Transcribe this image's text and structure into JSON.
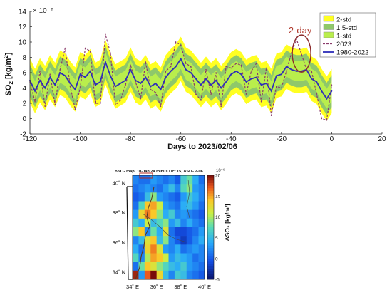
{
  "chart_data": [
    {
      "type": "line",
      "xlabel": "Days to 2023/02/06",
      "ylabel": "SO2 [kg/m2]",
      "y_exponent": "× 10⁻⁶",
      "xlim": [
        -120,
        20
      ],
      "ylim": [
        -2,
        14
      ],
      "x_ticks": [
        -120,
        -100,
        -80,
        -60,
        -40,
        -20,
        0,
        20
      ],
      "y_ticks": [
        -2,
        0,
        2,
        4,
        6,
        8,
        10,
        12,
        14
      ],
      "legend_position": "top-right",
      "grid": false,
      "x": [
        -120,
        -118,
        -116,
        -114,
        -112,
        -110,
        -108,
        -106,
        -104,
        -102,
        -100,
        -98,
        -96,
        -94,
        -92,
        -90,
        -88,
        -86,
        -84,
        -82,
        -80,
        -78,
        -76,
        -74,
        -72,
        -70,
        -68,
        -66,
        -64,
        -62,
        -60,
        -58,
        -56,
        -54,
        -52,
        -50,
        -48,
        -46,
        -44,
        -42,
        -40,
        -38,
        -36,
        -34,
        -32,
        -30,
        -28,
        -26,
        -24,
        -22,
        -20,
        -18,
        -16,
        -14,
        -12,
        -10,
        -8,
        -6,
        -4,
        -2,
        0
      ],
      "series": [
        {
          "name": "1980-2022",
          "role": "mean",
          "color": "#2e2eb8",
          "values": [
            5.0,
            3.6,
            5.0,
            4.0,
            5.4,
            4.4,
            6.0,
            5.6,
            4.6,
            3.8,
            5.8,
            5.4,
            6.2,
            4.4,
            4.8,
            7.4,
            5.6,
            4.2,
            4.6,
            5.0,
            6.4,
            5.0,
            4.6,
            5.4,
            4.2,
            4.6,
            3.8,
            5.4,
            6.2,
            6.8,
            7.8,
            6.4,
            6.0,
            5.2,
            4.4,
            5.2,
            4.4,
            5.0,
            4.0,
            4.8,
            5.8,
            6.2,
            5.8,
            4.8,
            5.2,
            5.4,
            4.4,
            4.6,
            3.6,
            5.6,
            5.8,
            6.8,
            6.4,
            6.2,
            6.2,
            6.4,
            5.2,
            4.8,
            3.6,
            2.6,
            3.6
          ]
        },
        {
          "name": "2023",
          "role": "observed",
          "color": "#8a3a6a",
          "values": [
            4.8,
            2.2,
            6.2,
            1.6,
            5.8,
            1.8,
            6.4,
            9.2,
            4.2,
            1.2,
            4.0,
            9.2,
            8.8,
            2.0,
            2.0,
            11.0,
            8.6,
            1.8,
            2.4,
            4.4,
            7.0,
            4.8,
            2.6,
            7.4,
            3.8,
            3.4,
            1.6,
            6.2,
            6.8,
            10.0,
            9.6,
            7.2,
            6.8,
            3.2,
            2.4,
            6.4,
            3.2,
            6.0,
            1.6,
            6.8,
            6.6,
            7.2,
            7.0,
            3.2,
            6.2,
            7.2,
            2.2,
            6.6,
            0.4,
            4.2,
            4.0,
            6.2,
            8.6,
            10.4,
            8.4,
            6.4,
            6.2,
            3.2,
            0.0,
            -0.2,
            4.4
          ]
        },
        {
          "name": "1-std",
          "role": "band",
          "half_width": 1.3,
          "color": "#b9ee4c"
        },
        {
          "name": "1.5-std",
          "role": "band",
          "half_width": 2.1,
          "color": "#8fc86a"
        },
        {
          "name": "2-std",
          "role": "band",
          "half_width": 2.9,
          "color": "#ffff22"
        }
      ],
      "annotation": {
        "text": "2-day",
        "x": -12,
        "y": 8.5,
        "color": "#b03a2e"
      }
    },
    {
      "type": "heatmap",
      "title": "ΔSO₂ map: 10-Jan 24 minus Oct 15, ΔSO₂ 2-06",
      "colorbar_label": "ΔSO₂ [kg/m²]",
      "colorbar_exponent": "10⁻⁶",
      "colorbar_range": [
        -5,
        20
      ],
      "colorbar_ticks": [
        -5,
        0,
        5,
        10,
        15,
        20
      ],
      "x_ticks": [
        "34˚ E",
        "36˚ E",
        "38˚ E",
        "40˚ E"
      ],
      "y_ticks": [
        "40˚ N",
        "38˚ N",
        "36˚ N",
        "34˚ N"
      ],
      "xlim": [
        34,
        40
      ],
      "ylim": [
        33.5,
        40.5
      ],
      "grid": [
        [
          2,
          1,
          1,
          3,
          2,
          1,
          2,
          0,
          6,
          8,
          4,
          1
        ],
        [
          1,
          2,
          3,
          2,
          1,
          3,
          5,
          2,
          7,
          9,
          3,
          2
        ],
        [
          0,
          1,
          5,
          9,
          3,
          2,
          1,
          0,
          3,
          6,
          4,
          2
        ],
        [
          1,
          7,
          14,
          15,
          11,
          3,
          2,
          1,
          4,
          5,
          3,
          1
        ],
        [
          3,
          13,
          16,
          14,
          9,
          4,
          6,
          2,
          3,
          2,
          1,
          0
        ],
        [
          6,
          4,
          11,
          5,
          7,
          9,
          3,
          5,
          2,
          4,
          2,
          1
        ],
        [
          9,
          14,
          2,
          8,
          4,
          12,
          1,
          -1,
          -1,
          0,
          1,
          3
        ],
        [
          2,
          5,
          12,
          14,
          5,
          9,
          2,
          0,
          -2,
          0,
          2,
          4
        ],
        [
          4,
          1,
          13,
          16,
          12,
          3,
          2,
          4,
          1,
          2,
          3,
          2
        ],
        [
          7,
          2,
          10,
          15,
          14,
          11,
          3,
          5,
          4,
          3,
          1,
          2
        ],
        [
          1,
          8,
          14,
          12,
          9,
          7,
          5,
          4,
          6,
          3,
          2,
          1
        ],
        [
          19,
          3,
          17,
          20,
          13,
          5,
          2,
          6,
          5,
          2,
          1,
          0
        ]
      ]
    }
  ]
}
